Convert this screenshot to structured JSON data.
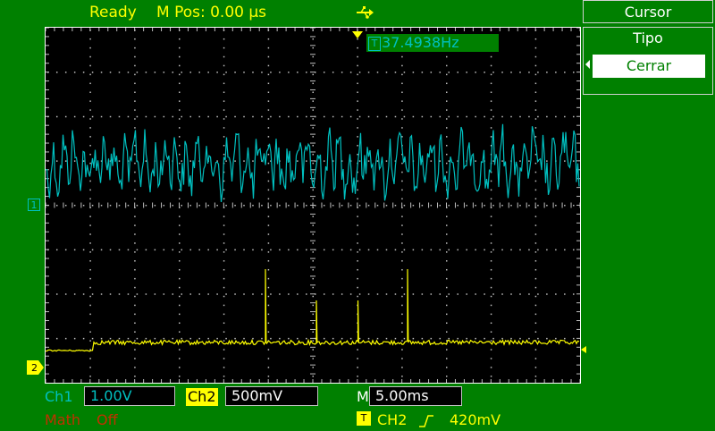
{
  "status": {
    "state": "Ready",
    "mpos_label": "M Pos: 0.00 µs",
    "usb_icon": "usb-icon"
  },
  "trigger_readout": {
    "tag": "T",
    "frequency": "37.4938Hz"
  },
  "menu": {
    "title": "Cursor",
    "group_label": "Tipo",
    "group_value": "Cerrar"
  },
  "channels": {
    "ch1": {
      "marker": "1",
      "label": "Ch1",
      "scale": "1.00V",
      "color": "#00c0c0"
    },
    "ch2": {
      "marker": "2",
      "label": "Ch2",
      "scale": "500mV",
      "color": "#ffff00"
    },
    "math": {
      "label": "Math",
      "state": "Off",
      "color": "#c03000"
    }
  },
  "timebase": {
    "label": "M",
    "value": "5.00ms"
  },
  "trigger": {
    "tag": "T",
    "source": "CH2",
    "slope_icon": "rising-edge-icon",
    "level": "420mV"
  }
}
